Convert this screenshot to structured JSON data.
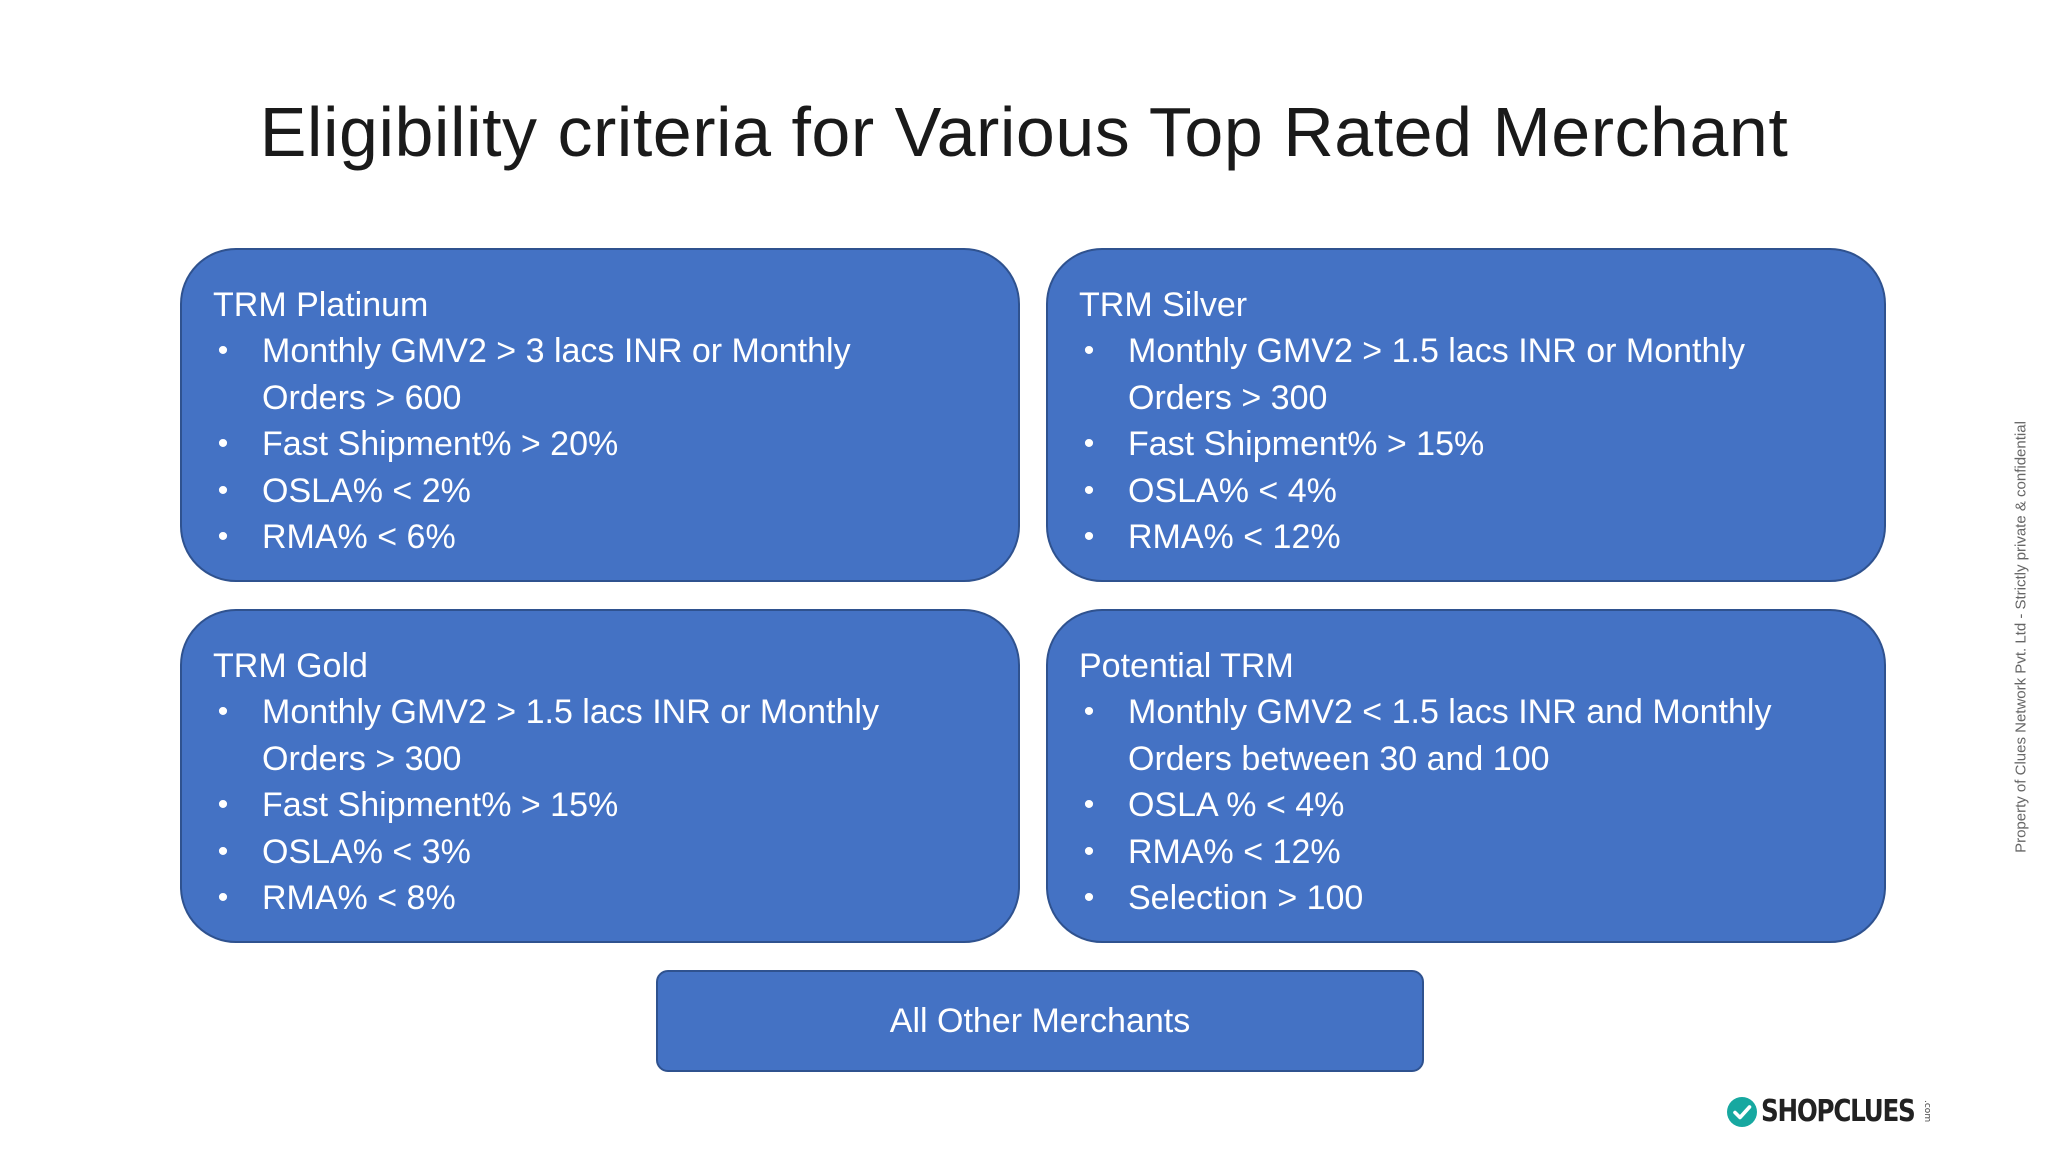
{
  "title": "Eligibility criteria for Various Top Rated Merchant",
  "cards": {
    "platinum": {
      "title": "TRM Platinum",
      "items": [
        [
          "Monthly GMV2 > 3 lacs INR or Monthly",
          "Orders > 600"
        ],
        [
          "Fast Shipment% > 20%"
        ],
        [
          "OSLA% < 2%"
        ],
        [
          "RMA% < 6%"
        ]
      ]
    },
    "silver": {
      "title": "TRM Silver",
      "items": [
        [
          "Monthly GMV2 > 1.5 lacs INR or Monthly",
          "Orders > 300"
        ],
        [
          "Fast Shipment% > 15%"
        ],
        [
          "OSLA% < 4%"
        ],
        [
          "RMA% < 12%"
        ]
      ]
    },
    "gold": {
      "title": "TRM Gold",
      "items": [
        [
          "Monthly GMV2 > 1.5 lacs INR or Monthly",
          "Orders > 300"
        ],
        [
          "Fast Shipment% > 15%"
        ],
        [
          "OSLA% < 3%"
        ],
        [
          "RMA% < 8%"
        ]
      ]
    },
    "potential": {
      "title": "Potential TRM",
      "items": [
        [
          "Monthly GMV2 < 1.5 lacs INR and Monthly",
          "Orders between 30 and 100"
        ],
        [
          "OSLA % < 4%"
        ],
        [
          "RMA% < 12%"
        ],
        [
          "Selection > 100"
        ]
      ]
    }
  },
  "bottom_label": "All Other Merchants",
  "side_note": "Property of Clues Network Pvt. Ltd - Strictly private & confidential",
  "logo": {
    "text": "SHOPCLUES",
    "suffix": ".com",
    "icon": "check-circle-icon",
    "color": "#17a8a0"
  },
  "colors": {
    "card_fill": "#4472c4",
    "card_border": "#2f528f"
  }
}
